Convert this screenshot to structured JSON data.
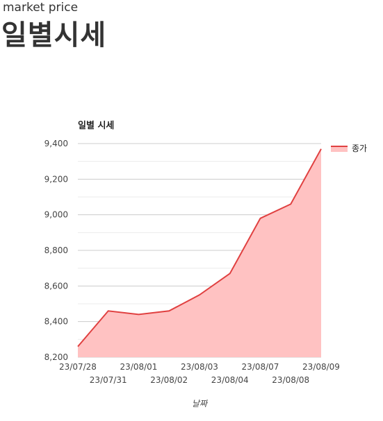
{
  "header": {
    "subtitle": "market price",
    "title": "일별시세"
  },
  "chart_data": {
    "type": "area",
    "title": "일별 시세",
    "xlabel": "날짜",
    "ylabel": "",
    "categories": [
      "23/07/28",
      "23/07/31",
      "23/08/01",
      "23/08/02",
      "23/08/03",
      "23/08/04",
      "23/08/07",
      "23/08/08",
      "23/08/09"
    ],
    "series": [
      {
        "name": "종가",
        "values": [
          8260,
          8460,
          8440,
          8460,
          8550,
          8670,
          8980,
          9060,
          9370
        ]
      }
    ],
    "ylim": [
      8200,
      9400
    ],
    "y_ticks": [
      "8,200",
      "8,400",
      "8,600",
      "8,800",
      "9,000",
      "9,200",
      "9,400"
    ],
    "grid": true,
    "legend_position": "right",
    "colors": {
      "line": "#e04040",
      "fill": "#ffc2c2",
      "grid_major": "#cccccc",
      "grid_minor": "#ebebeb",
      "axis_text": "#444444"
    }
  }
}
